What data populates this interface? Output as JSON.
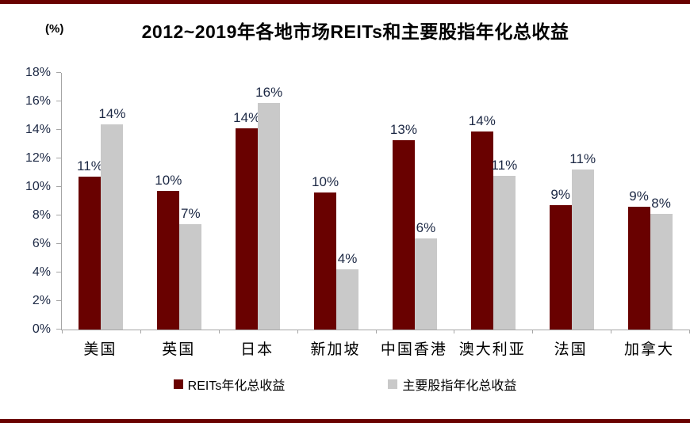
{
  "header": {
    "unit_label": "(%)",
    "title": "2012~2019年各地市场REITs和主要股指年化总收益"
  },
  "chart_data": {
    "type": "bar",
    "title": "2012~2019年各地市场REITs和主要股指年化总收益",
    "unit_label": "(%)",
    "categories": [
      "美国",
      "英国",
      "日本",
      "新加坡",
      "中国香港",
      "澳大利亚",
      "法国",
      "加拿大"
    ],
    "series": [
      {
        "name": "REITs年化总收益",
        "color": "#690100",
        "values": [
          10.7,
          9.7,
          14.1,
          9.6,
          13.3,
          13.9,
          8.7,
          8.6
        ],
        "labels": [
          "11%",
          "10%",
          "14%",
          "10%",
          "13%",
          "14%",
          "9%",
          "9%"
        ]
      },
      {
        "name": "主要股指年化总收益",
        "color": "#C9C9C9",
        "values": [
          14.4,
          7.4,
          15.9,
          4.2,
          6.4,
          10.8,
          11.2,
          8.1
        ],
        "labels": [
          "14%",
          "7%",
          "16%",
          "4%",
          "6%",
          "11%",
          "11%",
          "8%"
        ]
      }
    ],
    "ylim": [
      0,
      18
    ],
    "ytick_step": 2,
    "yticks": [
      "0%",
      "2%",
      "4%",
      "6%",
      "8%",
      "10%",
      "12%",
      "14%",
      "16%",
      "18%"
    ],
    "grid": false,
    "legend_position": "bottom",
    "accent_rule_color": "#690100",
    "axis_color": "#A6A6A6",
    "label_text_color": "#1C2844"
  }
}
